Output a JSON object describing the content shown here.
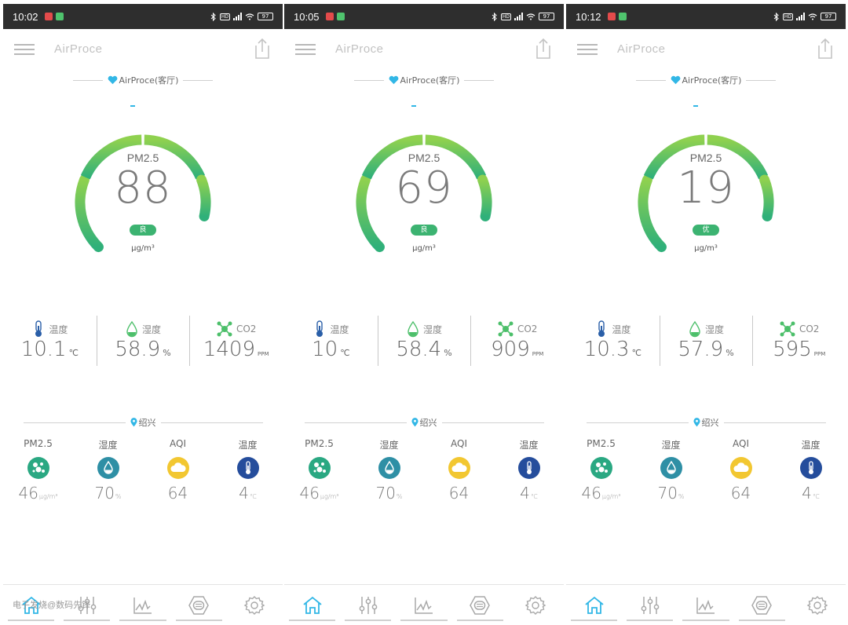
{
  "screens": [
    {
      "status": {
        "time": "10:02",
        "battery": "97"
      },
      "app_title": "AirProce",
      "device_name": "AirProce(客厅)",
      "gauge": {
        "title": "PM2.5",
        "value": "88",
        "level": "良",
        "unit": "μg/m³",
        "fill": 0.88
      },
      "indoor": {
        "temperature": {
          "label": "温度",
          "value": "10.1",
          "unit": "℃"
        },
        "humidity": {
          "label": "湿度",
          "value": "58.9",
          "unit": "%"
        },
        "co2": {
          "label": "CO2",
          "value": "1409",
          "unit": "PPM"
        }
      },
      "city": "绍兴",
      "outdoor": {
        "pm25": {
          "label": "PM2.5",
          "value": "46",
          "unit": "μg/m³"
        },
        "humidity": {
          "label": "湿度",
          "value": "70",
          "unit": "%"
        },
        "aqi": {
          "label": "AQI",
          "value": "64"
        },
        "temperature": {
          "label": "温度",
          "value": "4",
          "unit": "℃"
        }
      }
    },
    {
      "status": {
        "time": "10:05",
        "battery": "97"
      },
      "app_title": "AirProce",
      "device_name": "AirProce(客厅)",
      "gauge": {
        "title": "PM2.5",
        "value": "69",
        "level": "良",
        "unit": "μg/m³",
        "fill": 0.88
      },
      "indoor": {
        "temperature": {
          "label": "温度",
          "value": "10",
          "unit": "℃"
        },
        "humidity": {
          "label": "湿度",
          "value": "58.4",
          "unit": "%"
        },
        "co2": {
          "label": "CO2",
          "value": "909",
          "unit": "PPM"
        }
      },
      "city": "绍兴",
      "outdoor": {
        "pm25": {
          "label": "PM2.5",
          "value": "46",
          "unit": "μg/m³"
        },
        "humidity": {
          "label": "湿度",
          "value": "70",
          "unit": "%"
        },
        "aqi": {
          "label": "AQI",
          "value": "64"
        },
        "temperature": {
          "label": "温度",
          "value": "4",
          "unit": "℃"
        }
      }
    },
    {
      "status": {
        "time": "10:12",
        "battery": "97"
      },
      "app_title": "AirProce",
      "device_name": "AirProce(客厅)",
      "gauge": {
        "title": "PM2.5",
        "value": "19",
        "level": "优",
        "unit": "μg/m³",
        "fill": 0.88
      },
      "indoor": {
        "temperature": {
          "label": "温度",
          "value": "10.3",
          "unit": "℃"
        },
        "humidity": {
          "label": "湿度",
          "value": "57.9",
          "unit": "%"
        },
        "co2": {
          "label": "CO2",
          "value": "595",
          "unit": "PPM"
        }
      },
      "city": "绍兴",
      "outdoor": {
        "pm25": {
          "label": "PM2.5",
          "value": "46",
          "unit": "μg/m³"
        },
        "humidity": {
          "label": "湿度",
          "value": "70",
          "unit": "%"
        },
        "aqi": {
          "label": "AQI",
          "value": "64"
        },
        "temperature": {
          "label": "温度",
          "value": "4",
          "unit": "℃"
        }
      }
    }
  ],
  "watermark": "电子发烧@数码先锋",
  "colors": {
    "gauge_start": "#8fd14f",
    "gauge_end": "#2fb07a",
    "badge": "#3cb371",
    "pm25_circle": "#2aa882",
    "humidity_circle": "#2e8fa5",
    "aqi_circle": "#f2c731",
    "temp_circle": "#254d9c",
    "accent_blue": "#32b7e6"
  },
  "icons": {
    "menu": "hamburger-icon",
    "share": "share-icon",
    "tabs": [
      "home-icon",
      "sliders-icon",
      "chart-icon",
      "filter-icon",
      "gear-icon"
    ]
  }
}
